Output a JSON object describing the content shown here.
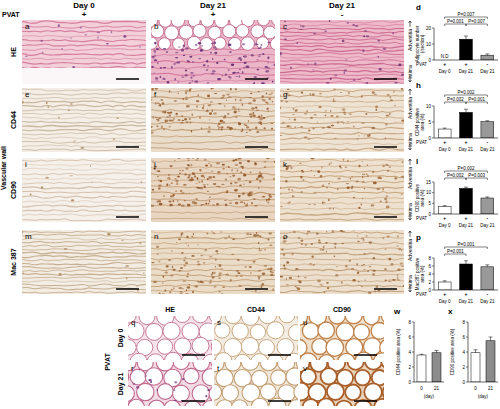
{
  "figure": {
    "pvat_label": "PVAT",
    "section_label": "Vascular wall",
    "column_headers": [
      {
        "day": "Day 0",
        "pvat": "+"
      },
      {
        "day": "Day 21",
        "pvat": "+"
      },
      {
        "day": "Day 21",
        "pvat": "-"
      }
    ],
    "rows": [
      {
        "label": "HE",
        "panels": [
          "a",
          "b",
          "c"
        ]
      },
      {
        "label": "CD44",
        "panels": [
          "e",
          "f",
          "g"
        ]
      },
      {
        "label": "CD90",
        "panels": [
          "i",
          "j",
          "k"
        ]
      },
      {
        "label": "Mac 387",
        "panels": [
          "m",
          "n",
          "o"
        ]
      }
    ],
    "side_labels": {
      "top": "Adventitia",
      "bottom": "Intima"
    },
    "bottom": {
      "section_label": "PVAT",
      "column_headers": [
        "HE",
        "CD44",
        "CD90"
      ],
      "rows": [
        {
          "label": "Day 0",
          "panels": [
            "q",
            "s",
            "u"
          ]
        },
        {
          "label": "Day 21",
          "panels": [
            "r",
            "t",
            "v"
          ]
        }
      ]
    }
  },
  "chart_data": [
    {
      "type": "bar",
      "title": "d",
      "y_label": [
        "Adipocyte number",
        "(/section)"
      ],
      "group_label": "PVAT",
      "groups": [
        "+",
        "+",
        "-"
      ],
      "categories": [
        "Day 0",
        "Day 21",
        "Day 21"
      ],
      "values": [
        null,
        13,
        3
      ],
      "errors": [
        null,
        2.0,
        0.8
      ],
      "colors": [
        "#ffffff",
        "#000000",
        "#999999"
      ],
      "ylim": [
        0,
        20
      ],
      "yticks": [
        0,
        10,
        20
      ],
      "annotations": [
        {
          "text": "N.D",
          "index": 0
        }
      ],
      "comparisons": [
        {
          "bars": [
            0,
            2
          ],
          "text": "P=0.007"
        },
        {
          "bars": [
            0,
            1
          ],
          "text": "P=0.001"
        },
        {
          "bars": [
            1,
            2
          ],
          "text": "P=0.007"
        }
      ]
    },
    {
      "type": "bar",
      "title": "h",
      "y_label": [
        "CD44 positive",
        "area (%)"
      ],
      "group_label": "PVAT",
      "groups": [
        "+",
        "+",
        "-"
      ],
      "categories": [
        "Day 0",
        "Day 21",
        "Day 21"
      ],
      "values": [
        2.8,
        8.0,
        5.1
      ],
      "errors": [
        0.3,
        1.0,
        0.3
      ],
      "colors": [
        "#ffffff",
        "#000000",
        "#999999"
      ],
      "ylim": [
        0,
        10
      ],
      "yticks": [
        0,
        5,
        10
      ],
      "comparisons": [
        {
          "bars": [
            0,
            2
          ],
          "text": "P=0.002"
        },
        {
          "bars": [
            0,
            1
          ],
          "text": "P=0.002"
        },
        {
          "bars": [
            1,
            2
          ],
          "text": "P=0.001"
        }
      ]
    },
    {
      "type": "bar",
      "title": "l",
      "y_label": [
        "CD90 positive",
        "area (%)"
      ],
      "group_label": "PVAT",
      "groups": [
        "+",
        "+",
        "-"
      ],
      "categories": [
        "Day 0",
        "Day 21",
        "Day 21"
      ],
      "values": [
        3.5,
        12.0,
        7.5
      ],
      "errors": [
        0.4,
        0.6,
        0.5
      ],
      "colors": [
        "#ffffff",
        "#000000",
        "#999999"
      ],
      "ylim": [
        0,
        15
      ],
      "yticks": [
        0,
        5,
        10,
        15
      ],
      "comparisons": [
        {
          "bars": [
            0,
            2
          ],
          "text": "P=0.002"
        },
        {
          "bars": [
            0,
            1
          ],
          "text": "P=0.002"
        },
        {
          "bars": [
            1,
            2
          ],
          "text": "P=0.003"
        }
      ]
    },
    {
      "type": "bar",
      "title": "p",
      "y_label": [
        "Mac387 positive",
        "area (%)"
      ],
      "group_label": "PVAT",
      "groups": [
        "+",
        "+",
        "-"
      ],
      "categories": [
        "Day 0",
        "Day 21",
        "Day 21"
      ],
      "values": [
        2.0,
        6.5,
        5.8
      ],
      "errors": [
        0.3,
        0.8,
        0.5
      ],
      "colors": [
        "#ffffff",
        "#000000",
        "#999999"
      ],
      "ylim": [
        0,
        8
      ],
      "yticks": [
        0,
        2,
        4,
        6,
        8
      ],
      "comparisons": [
        {
          "bars": [
            0,
            2
          ],
          "text": "P=0.001"
        },
        {
          "bars": [
            0,
            1
          ],
          "text": "P=0.001"
        }
      ]
    },
    {
      "type": "bar",
      "title": "w",
      "y_label": [
        "CD44 positive area (%)"
      ],
      "x_label": "(day)",
      "categories": [
        "0",
        "21"
      ],
      "values": [
        3.6,
        3.9
      ],
      "errors": [
        0.1,
        0.3
      ],
      "colors": [
        "#ffffff",
        "#8c8c8c"
      ],
      "ylim": [
        0,
        8
      ],
      "yticks": [
        0,
        2,
        4,
        6,
        8
      ]
    },
    {
      "type": "bar",
      "title": "x",
      "y_label": [
        "CD90 positive area (%)"
      ],
      "x_label": "(day)",
      "categories": [
        "0",
        "21"
      ],
      "values": [
        3.9,
        5.5
      ],
      "errors": [
        0.4,
        0.5
      ],
      "colors": [
        "#ffffff",
        "#8c8c8c"
      ],
      "ylim": [
        0,
        8
      ],
      "yticks": [
        0,
        2,
        4,
        6,
        8
      ]
    }
  ]
}
